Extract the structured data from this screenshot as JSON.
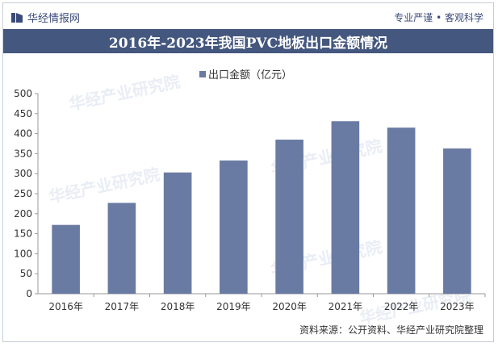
{
  "header": {
    "logo_text": "华经情报网",
    "slogan": "专业严谨 • 客观科学"
  },
  "title": "2016年-2023年我国PVC地板出口金额情况",
  "footer": {
    "source": "资料来源：公开资料、华经产业研究院整理"
  },
  "watermark_text": "华经产业研究院",
  "colors": {
    "bar": "#6a7ba3",
    "title_bg": "#44577f"
  },
  "chart_data": {
    "type": "bar",
    "title": "2016年-2023年我国PVC地板出口金额情况",
    "categories": [
      "2016年",
      "2017年",
      "2018年",
      "2019年",
      "2020年",
      "2021年",
      "2022年",
      "2023年"
    ],
    "series": [
      {
        "name": "出口金额（亿元）",
        "values": [
          172,
          227,
          303,
          333,
          385,
          431,
          415,
          363
        ]
      }
    ],
    "yticks": [
      0,
      50,
      100,
      150,
      200,
      250,
      300,
      350,
      400,
      450,
      500
    ],
    "ylim": [
      0,
      500
    ],
    "xlabel": "",
    "ylabel": "",
    "legend": "top-center",
    "grid": false
  }
}
